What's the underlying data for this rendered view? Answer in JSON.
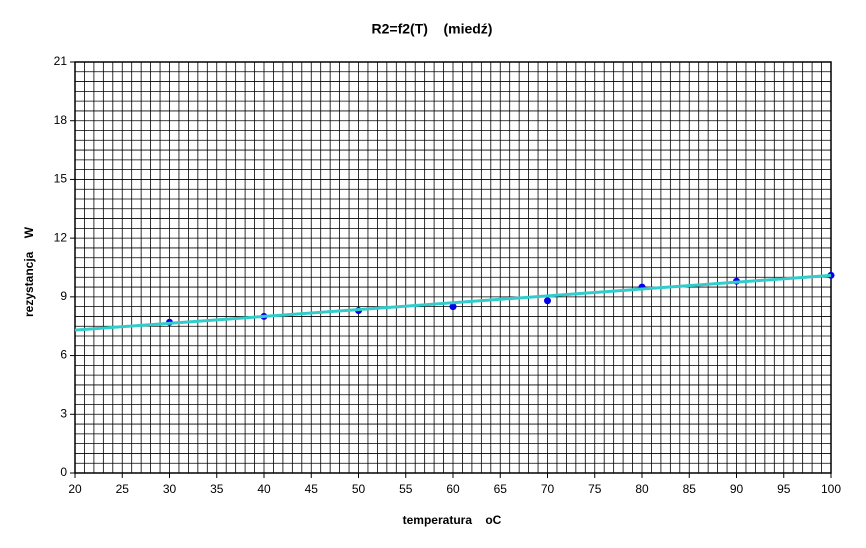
{
  "chart_data": {
    "type": "scatter",
    "title": "R2=f2(T)    (miedź)",
    "x_label": "temperatura    oC",
    "y_label": "rezystancja    W",
    "series": [
      {
        "mode": "markers",
        "color": "#0000ee",
        "x": [
          30,
          40,
          50,
          60,
          70,
          80,
          90,
          100
        ],
        "values": [
          7.7,
          8.0,
          8.3,
          8.5,
          8.8,
          9.5,
          9.8,
          10.1
        ]
      },
      {
        "mode": "line",
        "color": "#33cccc",
        "x": [
          20,
          100
        ],
        "values": [
          7.3,
          10.1
        ]
      }
    ],
    "xlim": [
      20,
      100
    ],
    "xticks": [
      20,
      25,
      30,
      35,
      40,
      45,
      50,
      55,
      60,
      65,
      70,
      75,
      80,
      85,
      90,
      95,
      100
    ],
    "ylim": [
      0,
      21
    ],
    "yticks": [
      0,
      3,
      6,
      9,
      12,
      15,
      18,
      21
    ],
    "grid": true,
    "minor_x_step": 1,
    "minor_y_step": 0.5
  }
}
